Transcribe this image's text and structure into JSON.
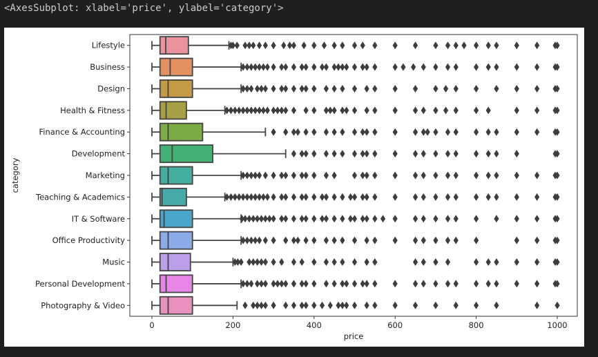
{
  "output_repr": "<AxesSubplot: xlabel='price', ylabel='category'>",
  "chart_data": {
    "type": "boxplot",
    "orientation": "horizontal",
    "xlabel": "price",
    "ylabel": "category",
    "xlim": [
      -50,
      1050
    ],
    "xticks": [
      0,
      200,
      400,
      600,
      800,
      1000
    ],
    "grid": false,
    "outlier_marker": "diamond",
    "outlier_color": "#3d3d3d",
    "line_color": "#444444",
    "categories": [
      {
        "name": "Lifestyle",
        "color": "#e9939e",
        "whislo": 0,
        "q1": 20,
        "med": 34,
        "q3": 90,
        "whishi": 190,
        "fliers": [
          195,
          200,
          210,
          230,
          240,
          250,
          265,
          280,
          300,
          325,
          340,
          350,
          375,
          400,
          425,
          450,
          470,
          500,
          520,
          550,
          600,
          650,
          700,
          730,
          750,
          770,
          800,
          830,
          850,
          900,
          950,
          995,
          1000
        ]
      },
      {
        "name": "Business",
        "color": "#e39161",
        "whislo": 0,
        "q1": 20,
        "med": 45,
        "q3": 100,
        "whishi": 220,
        "fliers": [
          225,
          235,
          245,
          255,
          265,
          275,
          285,
          300,
          320,
          330,
          350,
          370,
          380,
          400,
          420,
          430,
          450,
          460,
          470,
          480,
          500,
          520,
          530,
          550,
          600,
          620,
          645,
          670,
          700,
          730,
          750,
          800,
          830,
          850,
          900,
          950,
          995,
          1000
        ]
      },
      {
        "name": "Design",
        "color": "#c59a44",
        "whislo": 0,
        "q1": 20,
        "med": 40,
        "q3": 100,
        "whishi": 220,
        "fliers": [
          225,
          235,
          245,
          260,
          270,
          280,
          300,
          320,
          330,
          350,
          370,
          380,
          400,
          430,
          450,
          470,
          500,
          530,
          550,
          600,
          650,
          700,
          725,
          750,
          800,
          850,
          900,
          950,
          995,
          1000
        ]
      },
      {
        "name": "Health & Fitness",
        "color": "#a69f45",
        "whislo": 0,
        "q1": 20,
        "med": 35,
        "q3": 85,
        "whishi": 180,
        "fliers": [
          185,
          195,
          205,
          215,
          225,
          235,
          245,
          255,
          265,
          275,
          285,
          300,
          310,
          320,
          330,
          350,
          380,
          400,
          430,
          440,
          450,
          470,
          480,
          500,
          530,
          550,
          600,
          650,
          670,
          700,
          725,
          750,
          800,
          830,
          900,
          950,
          995,
          1000
        ]
      },
      {
        "name": "Finance & Accounting",
        "color": "#7dab45",
        "whislo": 0,
        "q1": 20,
        "med": 40,
        "q3": 125,
        "whishi": 280,
        "fliers": [
          300,
          330,
          350,
          360,
          380,
          400,
          430,
          450,
          470,
          500,
          520,
          530,
          550,
          600,
          650,
          670,
          680,
          700,
          730,
          750,
          800,
          830,
          850,
          900,
          950,
          995,
          1000
        ]
      },
      {
        "name": "Development",
        "color": "#45b074",
        "whislo": 0,
        "q1": 20,
        "med": 50,
        "q3": 150,
        "whishi": 330,
        "fliers": [
          350,
          370,
          380,
          400,
          430,
          450,
          470,
          500,
          520,
          530,
          550,
          600,
          650,
          670,
          700,
          730,
          750,
          800,
          830,
          850,
          900,
          995,
          1000
        ]
      },
      {
        "name": "Marketing",
        "color": "#46ada1",
        "whislo": 0,
        "q1": 20,
        "med": 40,
        "q3": 100,
        "whishi": 220,
        "fliers": [
          225,
          235,
          245,
          255,
          265,
          280,
          300,
          320,
          330,
          350,
          370,
          380,
          400,
          430,
          450,
          500,
          520,
          530,
          550,
          600,
          650,
          670,
          700,
          730,
          750,
          800,
          830,
          850,
          900,
          950,
          995,
          1000
        ]
      },
      {
        "name": "Teaching & Academics",
        "color": "#48aaa8",
        "whislo": 0,
        "q1": 20,
        "med": 25,
        "q3": 85,
        "whishi": 180,
        "fliers": [
          185,
          195,
          205,
          215,
          225,
          235,
          245,
          255,
          265,
          275,
          285,
          300,
          320,
          330,
          350,
          370,
          380,
          400,
          420,
          430,
          450,
          470,
          490,
          500,
          520,
          530,
          550,
          600,
          650,
          670,
          700,
          730,
          750,
          800,
          830,
          850,
          900,
          950,
          995,
          1000
        ]
      },
      {
        "name": "IT & Software",
        "color": "#4aa7c9",
        "whislo": 0,
        "q1": 20,
        "med": 30,
        "q3": 100,
        "whishi": 220,
        "fliers": [
          222,
          230,
          240,
          250,
          260,
          270,
          280,
          290,
          300,
          320,
          330,
          350,
          370,
          380,
          400,
          420,
          430,
          450,
          470,
          490,
          500,
          520,
          530,
          550,
          570,
          600,
          650,
          670,
          700,
          730,
          750,
          800,
          850,
          900,
          950,
          995,
          1000
        ]
      },
      {
        "name": "Office Productivity",
        "color": "#8cabe9",
        "whislo": 0,
        "q1": 20,
        "med": 40,
        "q3": 100,
        "whishi": 220,
        "fliers": [
          225,
          235,
          245,
          255,
          265,
          280,
          300,
          330,
          350,
          360,
          380,
          400,
          430,
          450,
          470,
          500,
          530,
          550,
          600,
          650,
          670,
          700,
          730,
          750,
          800,
          900,
          950,
          995,
          1000
        ]
      },
      {
        "name": "Music",
        "color": "#bba0e9",
        "whislo": 0,
        "q1": 20,
        "med": 40,
        "q3": 95,
        "whishi": 200,
        "fliers": [
          205,
          212,
          220,
          240,
          250,
          260,
          270,
          280,
          300,
          320,
          350,
          370,
          400,
          430,
          450,
          470,
          500,
          530,
          550,
          650,
          670,
          700,
          730,
          800,
          830,
          850,
          900,
          950,
          995,
          1000
        ]
      },
      {
        "name": "Personal Development",
        "color": "#e886e8",
        "whislo": 0,
        "q1": 20,
        "med": 35,
        "q3": 100,
        "whishi": 220,
        "fliers": [
          225,
          235,
          245,
          260,
          270,
          280,
          300,
          310,
          320,
          330,
          350,
          370,
          380,
          400,
          430,
          450,
          470,
          480,
          500,
          520,
          530,
          550,
          600,
          650,
          670,
          700,
          730,
          750,
          800,
          830,
          850,
          900,
          950,
          995,
          1000
        ]
      },
      {
        "name": "Photography & Video",
        "color": "#e891bf",
        "whislo": 0,
        "q1": 20,
        "med": 40,
        "q3": 100,
        "whishi": 210,
        "fliers": [
          230,
          250,
          260,
          270,
          280,
          300,
          330,
          350,
          370,
          380,
          400,
          420,
          440,
          460,
          470,
          480,
          500,
          530,
          550,
          600,
          650,
          700,
          750,
          800,
          850,
          950,
          1000
        ]
      }
    ]
  }
}
